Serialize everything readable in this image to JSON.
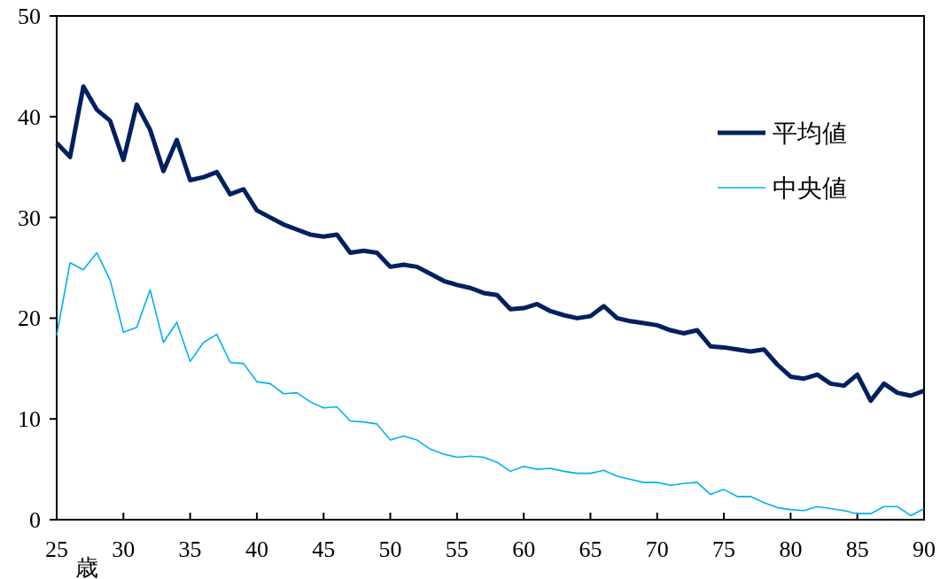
{
  "chart_data": {
    "type": "line",
    "xlabel": "歳",
    "x": [
      25,
      26,
      27,
      28,
      29,
      30,
      31,
      32,
      33,
      34,
      35,
      36,
      37,
      38,
      39,
      40,
      41,
      42,
      43,
      44,
      45,
      46,
      47,
      48,
      49,
      50,
      51,
      52,
      53,
      54,
      55,
      56,
      57,
      58,
      59,
      60,
      61,
      62,
      63,
      64,
      65,
      66,
      67,
      68,
      69,
      70,
      71,
      72,
      73,
      74,
      75,
      76,
      77,
      78,
      79,
      80,
      81,
      82,
      83,
      84,
      85,
      86,
      87,
      88,
      89,
      90
    ],
    "series": [
      {
        "name": "平均値",
        "color": "#002060",
        "values": [
          37.4,
          36.0,
          43.0,
          40.7,
          39.6,
          35.7,
          41.2,
          38.7,
          34.6,
          37.7,
          33.7,
          34.0,
          34.5,
          32.3,
          32.8,
          30.7,
          30.0,
          29.3,
          28.8,
          28.3,
          28.1,
          28.3,
          26.5,
          26.7,
          26.5,
          25.1,
          25.3,
          25.1,
          24.4,
          23.7,
          23.3,
          23.0,
          22.5,
          22.3,
          20.9,
          21.0,
          21.4,
          20.7,
          20.3,
          20.0,
          20.2,
          21.2,
          20.0,
          19.7,
          19.5,
          19.3,
          18.8,
          18.5,
          18.8,
          17.2,
          17.1,
          16.9,
          16.7,
          16.9,
          15.4,
          14.2,
          14.0,
          14.4,
          13.5,
          13.3,
          14.4,
          11.8,
          13.5,
          12.6,
          12.3,
          12.8
        ]
      },
      {
        "name": "中央値",
        "color": "#00b0f0",
        "values": [
          18.3,
          25.5,
          24.8,
          26.5,
          23.8,
          18.6,
          19.1,
          22.8,
          17.6,
          19.6,
          15.7,
          17.6,
          18.4,
          15.6,
          15.5,
          13.7,
          13.5,
          12.5,
          12.6,
          11.7,
          11.1,
          11.2,
          9.8,
          9.7,
          9.5,
          7.9,
          8.3,
          7.9,
          7.0,
          6.5,
          6.2,
          6.3,
          6.2,
          5.7,
          4.8,
          5.3,
          5.0,
          5.1,
          4.8,
          4.6,
          4.6,
          4.9,
          4.3,
          4.0,
          3.7,
          3.7,
          3.4,
          3.6,
          3.7,
          2.5,
          3.0,
          2.3,
          2.3,
          1.7,
          1.2,
          1.0,
          0.9,
          1.3,
          1.1,
          0.9,
          0.6,
          0.6,
          1.3,
          1.3,
          0.4,
          1.1
        ]
      }
    ],
    "xlim": [
      25,
      90
    ],
    "xticks": [
      25,
      30,
      35,
      40,
      45,
      50,
      55,
      60,
      65,
      70,
      75,
      80,
      85,
      90
    ],
    "ylim": [
      0,
      50
    ],
    "yticks": [
      0,
      10,
      20,
      30,
      40,
      50
    ],
    "grid": false,
    "legend": "top right",
    "line_style": "solid"
  }
}
